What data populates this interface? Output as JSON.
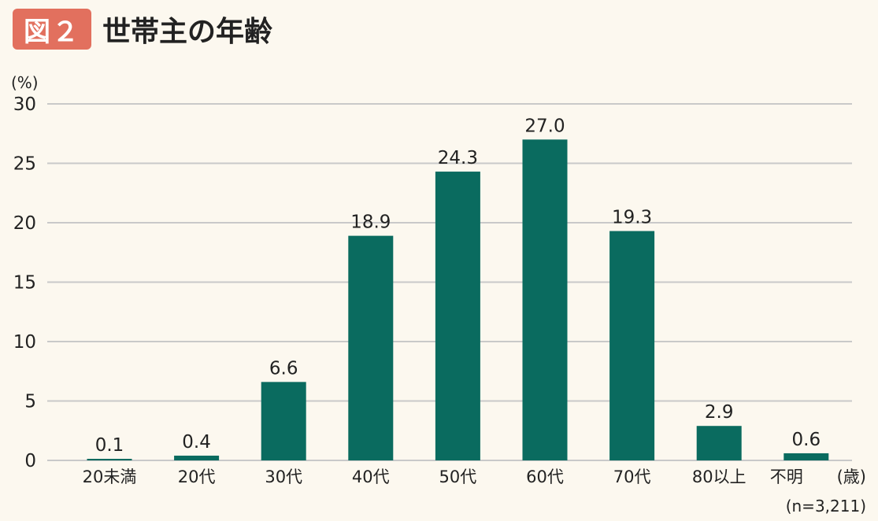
{
  "figure": {
    "badge": "図２",
    "title": "世帯主の年齢"
  },
  "chart_data": {
    "type": "bar",
    "title": "世帯主の年齢",
    "y_unit": "(%)",
    "x_unit": "(歳)",
    "note": "(n=3,211)",
    "categories": [
      "20未満",
      "20代",
      "30代",
      "40代",
      "50代",
      "60代",
      "70代",
      "80以上",
      "不明"
    ],
    "values": [
      0.1,
      0.4,
      6.6,
      18.9,
      24.3,
      27.0,
      19.3,
      2.9,
      0.6
    ],
    "value_labels": [
      "0.1",
      "0.4",
      "6.6",
      "18.9",
      "24.3",
      "27.0",
      "19.3",
      "2.9",
      "0.6"
    ],
    "yticks": [
      0,
      5,
      10,
      15,
      20,
      25,
      30
    ],
    "ylim": [
      0,
      30
    ],
    "grid": true,
    "colors": {
      "bar": "#0a6b5f",
      "grid": "#c9c9c9",
      "badge": "#e2705e"
    }
  }
}
